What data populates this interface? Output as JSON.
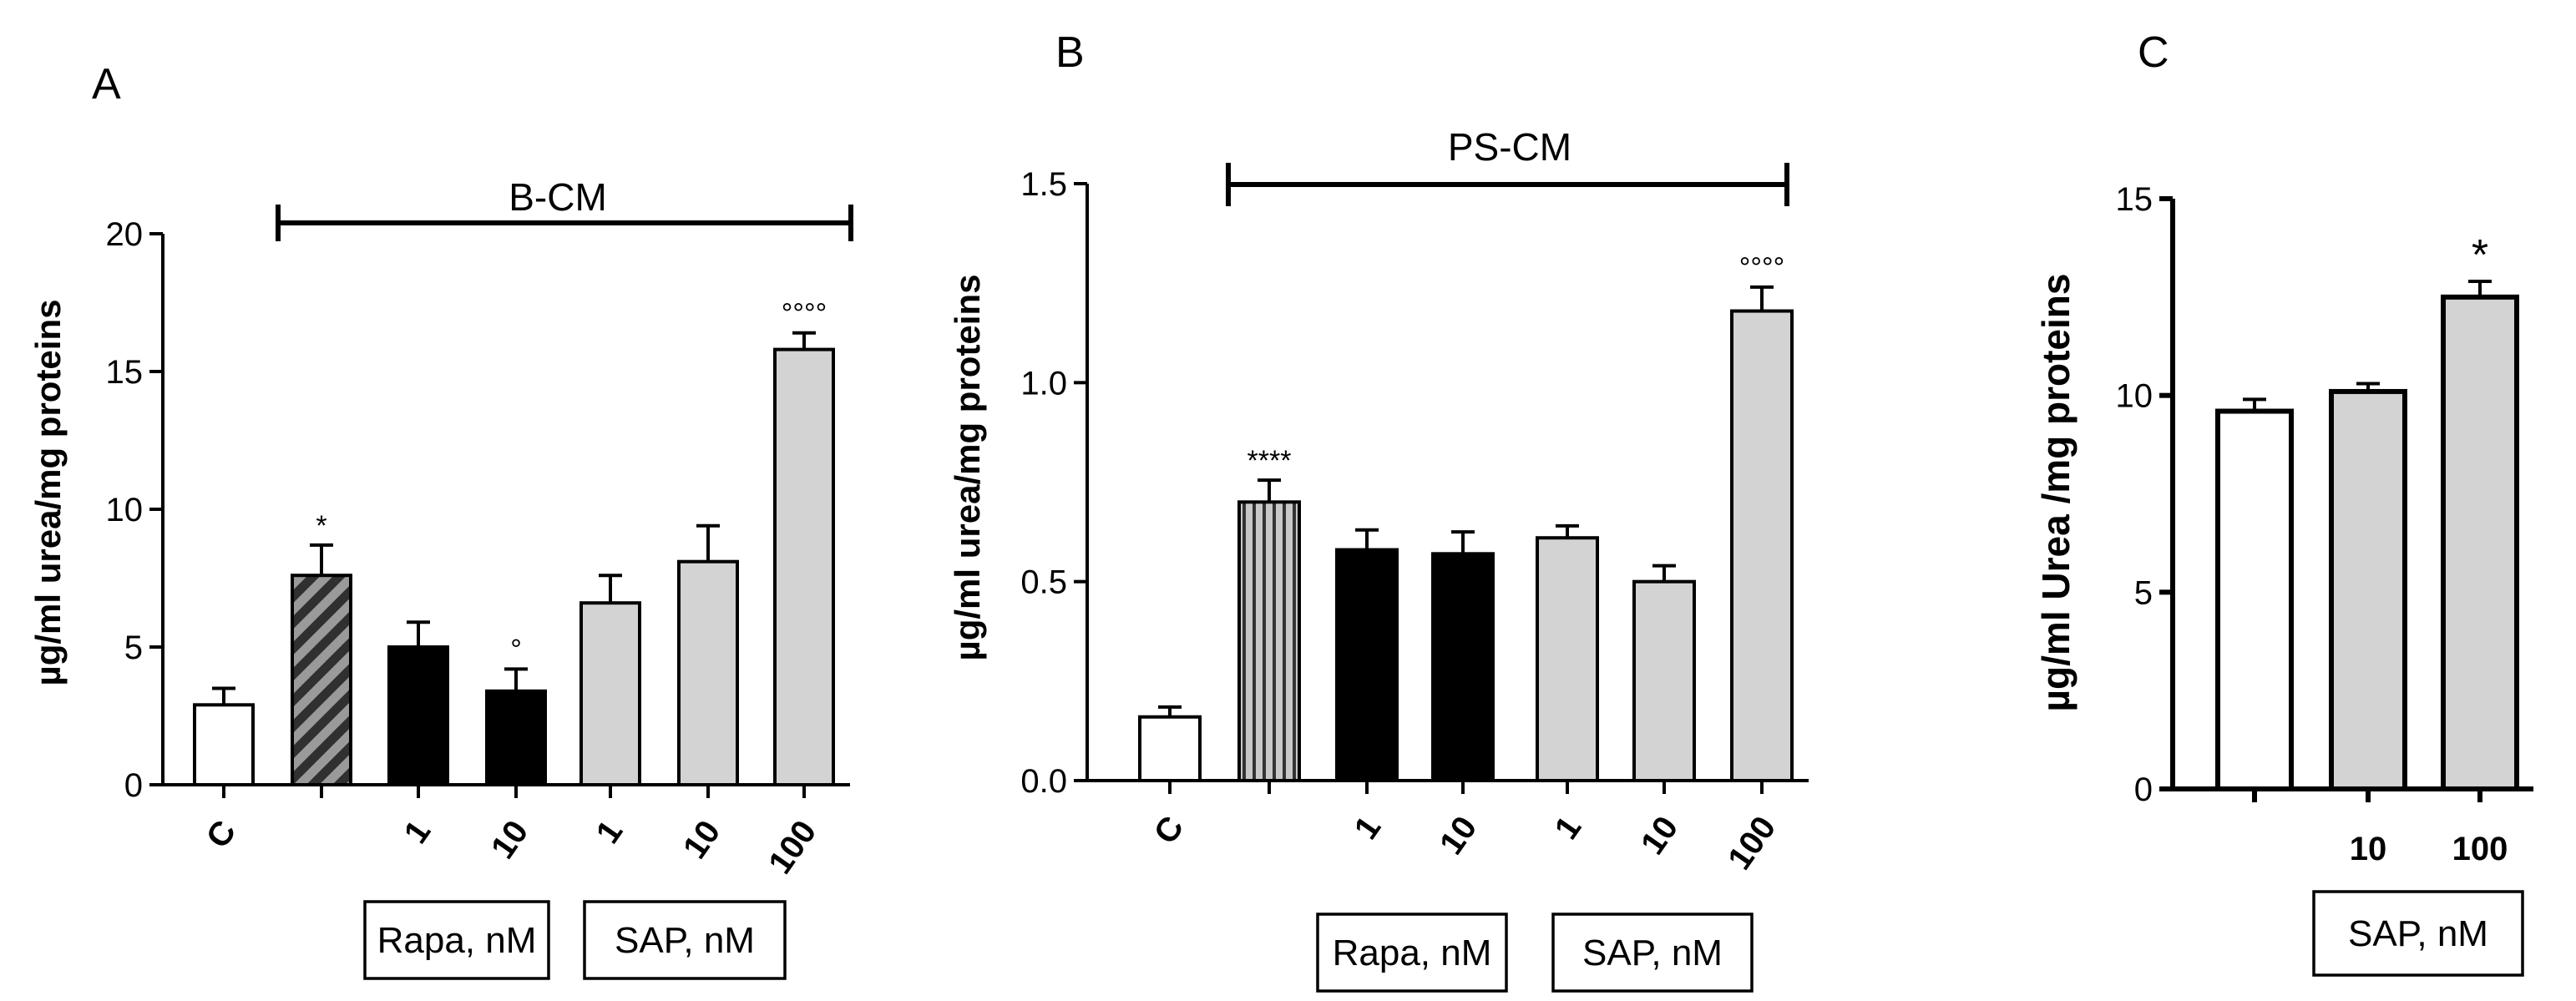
{
  "chart_data": [
    {
      "type": "bar",
      "panel": "A",
      "ylabel": "µg/ml urea/mg proteins",
      "ylim": [
        0,
        20
      ],
      "yticks": [
        "0",
        "5",
        "10",
        "15",
        "20"
      ],
      "bracket_label": "B-CM",
      "categories": [
        "C",
        "",
        "1",
        "10",
        "1",
        "10",
        "100"
      ],
      "values": [
        2.9,
        7.6,
        5.0,
        3.4,
        6.6,
        8.1,
        15.8
      ],
      "errors": [
        0.6,
        1.1,
        0.9,
        0.8,
        1.0,
        1.3,
        0.6
      ],
      "styles": [
        "white",
        "hatched",
        "black",
        "black",
        "gray",
        "gray",
        "gray"
      ],
      "annotations": [
        "",
        "*",
        "",
        "°",
        "",
        "",
        "°°°°"
      ],
      "group_boxes": [
        {
          "label": "Rapa, nM",
          "bars": [
            2,
            3
          ]
        },
        {
          "label": "SAP, nM",
          "bars": [
            4,
            6
          ]
        }
      ]
    },
    {
      "type": "bar",
      "panel": "B",
      "ylabel": "µg/ml urea/mg proteins",
      "ylim": [
        0,
        1.5
      ],
      "yticks": [
        "0.0",
        "0.5",
        "1.0",
        "1.5"
      ],
      "bracket_label": "PS-CM",
      "categories": [
        "C",
        "",
        "1",
        "10",
        "1",
        "10",
        "100"
      ],
      "values": [
        0.16,
        0.7,
        0.58,
        0.57,
        0.61,
        0.5,
        1.18
      ],
      "errors": [
        0.025,
        0.055,
        0.05,
        0.055,
        0.03,
        0.04,
        0.06
      ],
      "styles": [
        "white",
        "vstripe",
        "black",
        "black",
        "gray",
        "gray",
        "gray"
      ],
      "annotations": [
        "",
        "****",
        "",
        "",
        "",
        "",
        "°°°°"
      ],
      "group_boxes": [
        {
          "label": "Rapa, nM",
          "bars": [
            2,
            3
          ]
        },
        {
          "label": "SAP, nM",
          "bars": [
            4,
            6
          ]
        }
      ]
    },
    {
      "type": "bar",
      "panel": "C",
      "ylabel": "µg/ml Urea /mg proteins",
      "ylim": [
        0,
        15
      ],
      "yticks": [
        "0",
        "5",
        "10",
        "15"
      ],
      "categories": [
        "",
        "10",
        "100"
      ],
      "values": [
        9.6,
        10.1,
        12.5
      ],
      "errors": [
        0.3,
        0.2,
        0.4
      ],
      "styles": [
        "white",
        "gray",
        "gray"
      ],
      "annotations": [
        "",
        "",
        "*"
      ],
      "group_boxes": [
        {
          "label": "SAP, nM",
          "bars": [
            1,
            2
          ]
        }
      ]
    }
  ],
  "colors": {
    "black": "#000000",
    "gray": "#d3d3d3",
    "white": "#ffffff",
    "hatch_bg": "#9a9a9a"
  }
}
